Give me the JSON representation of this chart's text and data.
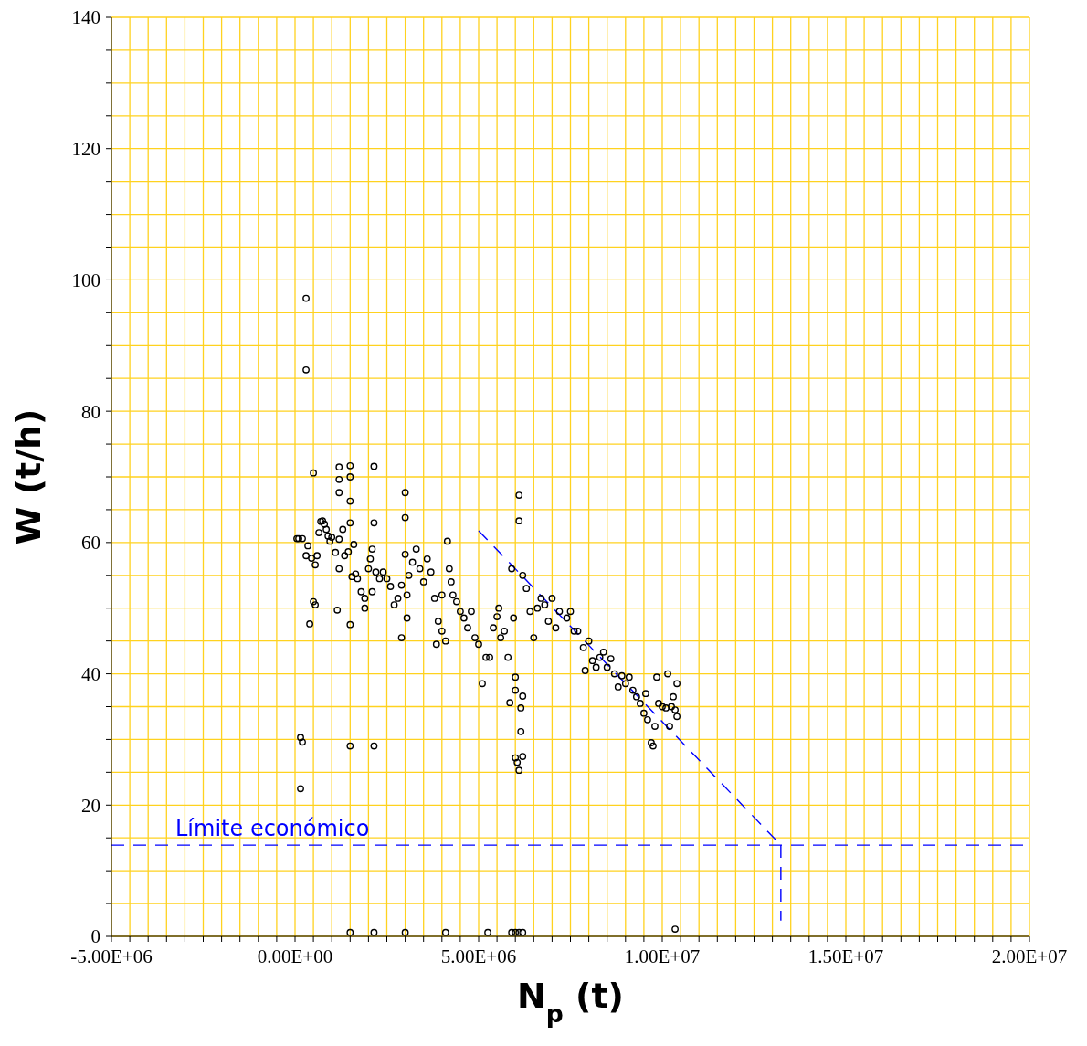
{
  "chart_data": {
    "type": "scatter",
    "xlabel": "N$_{p}$ (t)",
    "ylabel": "W (t/h)",
    "xlim": [
      -5000000,
      20000000
    ],
    "xticks": [
      {
        "value": -5000000,
        "label": "-5.00E+06"
      },
      {
        "value": -4500000,
        "label": null
      },
      {
        "value": -4000000,
        "label": null
      },
      {
        "value": -3500000,
        "label": null
      },
      {
        "value": -3000000,
        "label": null
      },
      {
        "value": -2500000,
        "label": null
      },
      {
        "value": -2000000,
        "label": null
      },
      {
        "value": -1500000,
        "label": null
      },
      {
        "value": -1000000,
        "label": null
      },
      {
        "value": -500000,
        "label": null
      },
      {
        "value": 0,
        "label": "0.00E+00"
      },
      {
        "value": 500000,
        "label": null
      },
      {
        "value": 1000000,
        "label": null
      },
      {
        "value": 1500000,
        "label": null
      },
      {
        "value": 2000000,
        "label": null
      },
      {
        "value": 2500000,
        "label": null
      },
      {
        "value": 3000000,
        "label": null
      },
      {
        "value": 3500000,
        "label": null
      },
      {
        "value": 4000000,
        "label": null
      },
      {
        "value": 4500000,
        "label": null
      },
      {
        "value": 5000000,
        "label": "5.00E+06"
      },
      {
        "value": 5500000,
        "label": null
      },
      {
        "value": 6000000,
        "label": null
      },
      {
        "value": 6500000,
        "label": null
      },
      {
        "value": 7000000,
        "label": null
      },
      {
        "value": 7500000,
        "label": null
      },
      {
        "value": 8000000,
        "label": null
      },
      {
        "value": 8500000,
        "label": null
      },
      {
        "value": 9000000,
        "label": null
      },
      {
        "value": 9500000,
        "label": null
      },
      {
        "value": 10000000,
        "label": "1.00E+07"
      },
      {
        "value": 10500000,
        "label": null
      },
      {
        "value": 11000000,
        "label": null
      },
      {
        "value": 11500000,
        "label": null
      },
      {
        "value": 12000000,
        "label": null
      },
      {
        "value": 12500000,
        "label": null
      },
      {
        "value": 13000000,
        "label": null
      },
      {
        "value": 13500000,
        "label": null
      },
      {
        "value": 14000000,
        "label": null
      },
      {
        "value": 14500000,
        "label": null
      },
      {
        "value": 15000000,
        "label": "1.50E+07"
      },
      {
        "value": 15500000,
        "label": null
      },
      {
        "value": 16000000,
        "label": null
      },
      {
        "value": 16500000,
        "label": null
      },
      {
        "value": 17000000,
        "label": null
      },
      {
        "value": 17500000,
        "label": null
      },
      {
        "value": 18000000,
        "label": null
      },
      {
        "value": 18500000,
        "label": null
      },
      {
        "value": 19000000,
        "label": null
      },
      {
        "value": 19500000,
        "label": null
      },
      {
        "value": 20000000,
        "label": "2.00E+07"
      }
    ],
    "ylim": [
      0,
      140
    ],
    "yticks": [
      0,
      {
        "value": 5,
        "label": null
      },
      {
        "value": 10,
        "label": null
      },
      {
        "value": 15,
        "label": null
      },
      20,
      {
        "value": 25,
        "label": null
      },
      {
        "value": 30,
        "label": null
      },
      {
        "value": 35,
        "label": null
      },
      40,
      {
        "value": 45,
        "label": null
      },
      {
        "value": 50,
        "label": null
      },
      {
        "value": 55,
        "label": null
      },
      60,
      {
        "value": 65,
        "label": null
      },
      {
        "value": 70,
        "label": null
      },
      {
        "value": 75,
        "label": null
      },
      80,
      {
        "value": 85,
        "label": null
      },
      {
        "value": 90,
        "label": null
      },
      {
        "value": 95,
        "label": null
      },
      100,
      {
        "value": 105,
        "label": null
      },
      {
        "value": 110,
        "label": null
      },
      {
        "value": 115,
        "label": null
      },
      120,
      {
        "value": 125,
        "label": null
      },
      {
        "value": 130,
        "label": null
      },
      {
        "value": 135,
        "label": null
      },
      140
    ],
    "grid": true,
    "marker": "circle",
    "ref_lines": [
      {
        "axis": "y",
        "value": 13.9,
        "label": "Límite económico",
        "color": "#0000ff",
        "line_style": "dashed"
      }
    ],
    "series": [
      {
        "type": "scatter",
        "color": "#000000",
        "x": [
          50000,
          100000,
          200000,
          300000,
          300000,
          150000,
          200000,
          150000,
          300000,
          350000,
          400000,
          500000,
          500000,
          550000,
          450000,
          550000,
          600000,
          650000,
          700000,
          750000,
          800000,
          850000,
          900000,
          950000,
          1000000,
          1100000,
          1200000,
          1200000,
          1200000,
          1200000,
          1200000,
          1150000,
          1300000,
          1350000,
          1450000,
          1500000,
          1500000,
          1500000,
          1500000,
          1500000,
          1500000,
          1550000,
          1600000,
          1650000,
          1700000,
          1800000,
          1900000,
          1900000,
          2000000,
          2050000,
          2100000,
          2150000,
          2150000,
          2150000,
          2100000,
          2200000,
          2300000,
          2400000,
          2500000,
          2600000,
          2700000,
          2800000,
          2900000,
          2900000,
          3000000,
          3000000,
          3000000,
          3050000,
          3050000,
          3100000,
          3200000,
          3300000,
          3400000,
          3500000,
          3600000,
          3700000,
          3800000,
          3850000,
          3900000,
          4000000,
          4000000,
          4100000,
          4150000,
          4200000,
          4250000,
          4300000,
          4400000,
          4500000,
          4600000,
          4700000,
          4800000,
          4900000,
          5000000,
          5100000,
          5200000,
          5300000,
          5400000,
          5500000,
          5550000,
          5600000,
          5700000,
          5800000,
          5850000,
          5900000,
          5950000,
          6000000,
          6000000,
          6000000,
          6050000,
          6100000,
          6100000,
          6100000,
          6150000,
          6150000,
          6200000,
          6200000,
          6200000,
          6300000,
          6400000,
          6500000,
          6600000,
          6700000,
          6800000,
          6900000,
          7000000,
          7100000,
          7200000,
          7400000,
          7500000,
          7600000,
          7700000,
          7900000,
          7850000,
          8000000,
          8100000,
          8200000,
          8300000,
          8400000,
          8500000,
          8600000,
          8700000,
          8800000,
          8900000,
          9000000,
          9100000,
          9200000,
          9300000,
          9400000,
          9500000,
          9550000,
          9600000,
          9700000,
          9750000,
          9800000,
          9850000,
          9900000,
          10000000,
          10100000,
          10150000,
          10200000,
          10250000,
          10300000,
          10350000,
          10400000,
          10400000,
          1500000,
          2150000,
          3000000,
          4100000,
          5250000,
          5900000,
          6000000,
          6100000,
          6200000,
          10350000
        ],
        "values": [
          60.6,
          60.6,
          60.6,
          97.2,
          86.3,
          30.3,
          29.6,
          22.5,
          58,
          59.5,
          47.6,
          70.6,
          51,
          50.5,
          57.6,
          56.6,
          58,
          61.5,
          63.2,
          63.3,
          62.8,
          62,
          61,
          60.2,
          60.8,
          58.5,
          71.5,
          69.6,
          67.6,
          60.5,
          56,
          49.7,
          62,
          58,
          58.6,
          71.7,
          70,
          66.3,
          63,
          29,
          47.5,
          54.8,
          59.7,
          55.2,
          54.5,
          52.5,
          51.5,
          50,
          56,
          57.5,
          59,
          71.6,
          63,
          29,
          52.5,
          55.5,
          54.5,
          55.5,
          54.5,
          53.3,
          50.5,
          51.5,
          53.5,
          45.5,
          67.6,
          63.8,
          58.2,
          52,
          48.5,
          55,
          57,
          59,
          56,
          54,
          57.5,
          55.5,
          51.5,
          44.5,
          48,
          46.5,
          52,
          45,
          60.2,
          56,
          54,
          52,
          51,
          49.5,
          48.5,
          47,
          49.5,
          45.5,
          44.5,
          38.5,
          42.5,
          42.5,
          47,
          48.7,
          50,
          45.5,
          46.5,
          42.5,
          35.6,
          56,
          48.5,
          39.5,
          37.5,
          27.2,
          26.5,
          67.2,
          63.3,
          25.3,
          34.8,
          31.2,
          36.6,
          27.4,
          55,
          53,
          49.5,
          45.5,
          50,
          51.5,
          50.5,
          48,
          51.5,
          47,
          49.5,
          48.5,
          49.5,
          46.5,
          46.5,
          40.5,
          44,
          45,
          42,
          41,
          42.5,
          43.3,
          41,
          42.3,
          40,
          38,
          39.7,
          38.5,
          39.5,
          37.5,
          36.5,
          35.5,
          34,
          37,
          33,
          29.5,
          29,
          32,
          39.5,
          35.5,
          35,
          34.8,
          40,
          32,
          35,
          36.5,
          34.5,
          38.5,
          33.5,
          0.6,
          0.6,
          0.6,
          0.6,
          0.6,
          0.6,
          0.6,
          0.6,
          0.6,
          1.1
        ]
      },
      {
        "type": "line",
        "color": "#0000ff",
        "line_style": "dashed",
        "marker": "none",
        "x": [
          5000000,
          13230000
        ],
        "values": [
          61.8,
          13.9
        ]
      },
      {
        "type": "line",
        "color": "#0000ff",
        "line_style": "dashed",
        "marker": "none",
        "x": [
          13230000,
          13230000
        ],
        "values": [
          13.9,
          2.4
        ]
      }
    ]
  }
}
